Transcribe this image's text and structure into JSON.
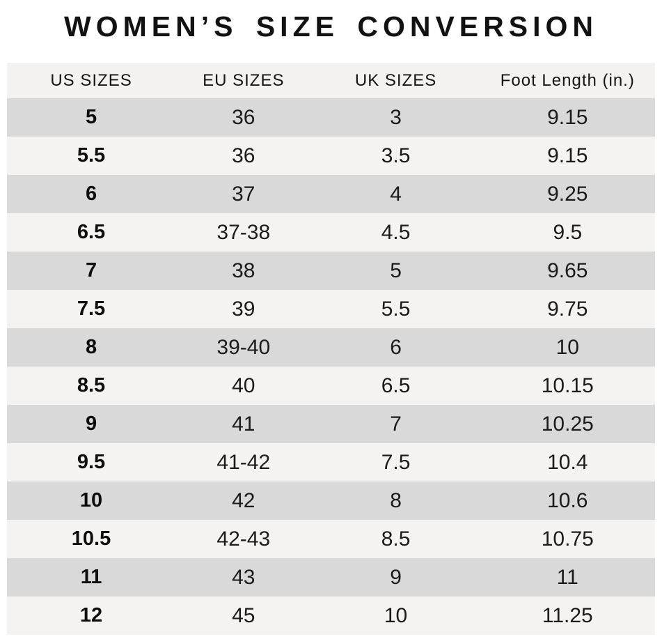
{
  "page": {
    "title": "WOMEN’S SIZE CONVERSION"
  },
  "chart_data": {
    "type": "table",
    "title": "WOMEN’S SIZE CONVERSION",
    "columns": [
      "US SIZES",
      "EU SIZES",
      "UK SIZES",
      "Foot Length (in.)"
    ],
    "rows": [
      [
        "5",
        "36",
        "3",
        "9.15"
      ],
      [
        "5.5",
        "36",
        "3.5",
        "9.15"
      ],
      [
        "6",
        "37",
        "4",
        "9.25"
      ],
      [
        "6.5",
        "37-38",
        "4.5",
        "9.5"
      ],
      [
        "7",
        "38",
        "5",
        "9.65"
      ],
      [
        "7.5",
        "39",
        "5.5",
        "9.75"
      ],
      [
        "8",
        "39-40",
        "6",
        "10"
      ],
      [
        "8.5",
        "40",
        "6.5",
        "10.15"
      ],
      [
        "9",
        "41",
        "7",
        "10.25"
      ],
      [
        "9.5",
        "41-42",
        "7.5",
        "10.4"
      ],
      [
        "10",
        "42",
        "8",
        "10.6"
      ],
      [
        "10.5",
        "42-43",
        "8.5",
        "10.75"
      ],
      [
        "11",
        "43",
        "9",
        "11"
      ],
      [
        "12",
        "45",
        "10",
        "11.25"
      ]
    ],
    "layout": {
      "striped": true,
      "stripe_pattern": "first data row dark, alternating",
      "first_column_bold": true,
      "legend": "none",
      "grid": "off"
    }
  },
  "colors": {
    "background": "#ffffff",
    "header_row_bg": "#f3f2f1",
    "row_dark_bg": "#d9d9d9",
    "row_light_bg": "#f4f3f2",
    "title_text": "#121212",
    "cell_text": "#1b1b1b"
  }
}
